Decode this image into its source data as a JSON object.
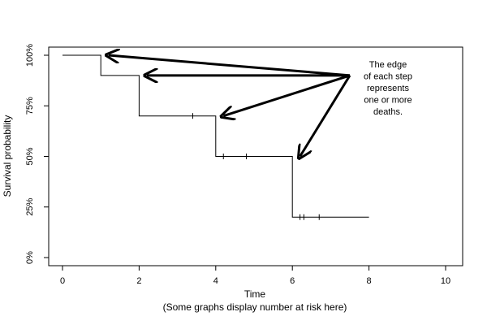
{
  "chart_data": {
    "type": "line",
    "subtype": "kaplan-meier step curve",
    "xlabel": "Time",
    "xlabel_note": "(Some graphs display number at risk here)",
    "ylabel": "Survival probability",
    "xlim": [
      0,
      10
    ],
    "ylim": [
      0,
      1
    ],
    "x_ticks": [
      0,
      2,
      4,
      6,
      8,
      10
    ],
    "x_tick_labels": [
      "0",
      "2",
      "4",
      "6",
      "8",
      "10"
    ],
    "y_ticks": [
      0,
      0.25,
      0.5,
      0.75,
      1
    ],
    "y_tick_labels": [
      "0%",
      "25%",
      "50%",
      "75%",
      "100%"
    ],
    "grid": false,
    "series": [
      {
        "steps": [
          {
            "x": 0,
            "y": 1.0
          },
          {
            "x": 1,
            "y": 0.9
          },
          {
            "x": 2,
            "y": 0.7
          },
          {
            "x": 4,
            "y": 0.5
          },
          {
            "x": 6,
            "y": 0.2
          }
        ],
        "end_x": 8,
        "censored": [
          {
            "x": 3.4,
            "y": 0.7
          },
          {
            "x": 4.2,
            "y": 0.5
          },
          {
            "x": 4.8,
            "y": 0.5
          },
          {
            "x": 6.2,
            "y": 0.2
          },
          {
            "x": 6.3,
            "y": 0.2
          },
          {
            "x": 6.7,
            "y": 0.2
          }
        ]
      }
    ],
    "annotation": {
      "lines": [
        "The edge",
        "of each step",
        "represents",
        "one or more",
        "deaths."
      ],
      "arrow_origin": {
        "x": 7.5,
        "y": 0.9
      },
      "arrow_targets": [
        {
          "x": 1.2,
          "y": 1.0
        },
        {
          "x": 2.2,
          "y": 0.9
        },
        {
          "x": 4.2,
          "y": 0.7
        },
        {
          "x": 6.2,
          "y": 0.5
        }
      ]
    }
  }
}
